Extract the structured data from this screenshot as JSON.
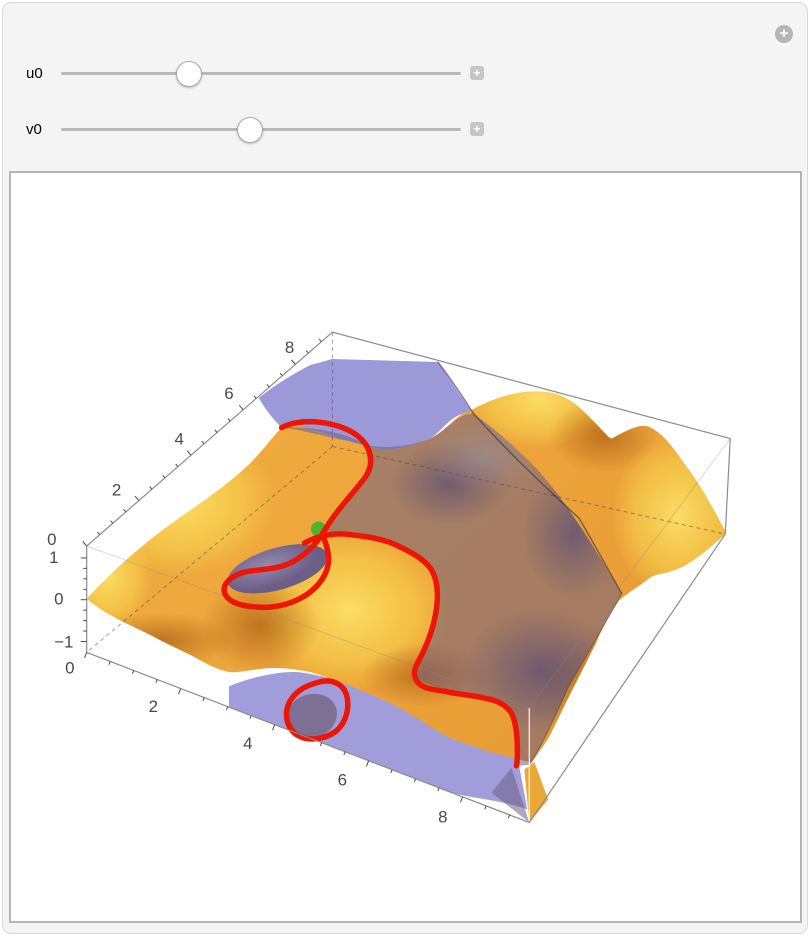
{
  "frame": {
    "corner_expand_label": "+"
  },
  "controls": [
    {
      "label": "u0",
      "fraction": 0.32,
      "expand_label": "+"
    },
    {
      "label": "v0",
      "fraction": 0.4725,
      "expand_label": "+"
    }
  ],
  "plot": {
    "x_tick_labels": [
      "0",
      "2",
      "4",
      "6",
      "8"
    ],
    "y_tick_labels": [
      "0",
      "2",
      "4",
      "6",
      "8"
    ],
    "z_tick_labels": [
      "1",
      "0",
      "−1"
    ],
    "colors": {
      "surface_high": "#f7d440",
      "surface_low": "#c87a22",
      "plane": "#9b99d8",
      "curve": "#ee1505",
      "point": "#4db32a"
    }
  },
  "chart_data": {
    "type": "surface3d",
    "title": "",
    "x_range": [
      0,
      9.42
    ],
    "y_range": [
      0,
      9.42
    ],
    "z_range": [
      -1,
      1
    ],
    "x_ticks": [
      0,
      2,
      4,
      6,
      8
    ],
    "y_ticks": [
      0,
      2,
      4,
      6,
      8
    ],
    "z_ticks": [
      -1,
      0,
      1
    ],
    "series": [
      {
        "name": "wavy-surface",
        "style": "orange-yellow shaded surface"
      },
      {
        "name": "tangent-plane",
        "style": "translucent blue plane"
      },
      {
        "name": "intersection-curve",
        "style": "thick red curve"
      },
      {
        "name": "tangency-point",
        "style": "green point"
      }
    ],
    "controls": {
      "u0_fraction": 0.32,
      "v0_fraction": 0.4725
    },
    "legend": "none",
    "grid": "boxed axes with dashed hidden edges"
  }
}
